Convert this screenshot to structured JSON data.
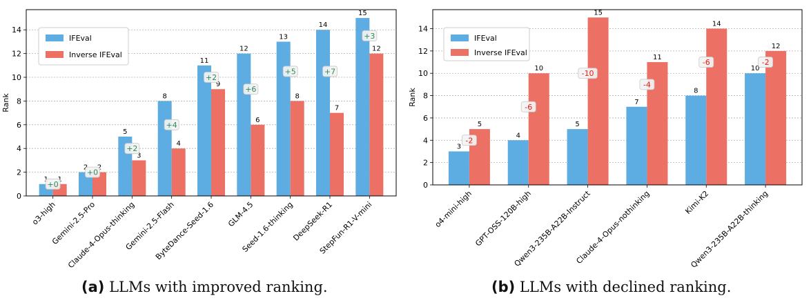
{
  "chart_data": [
    {
      "type": "bar",
      "title": "",
      "xlabel": "",
      "ylabel": "Rank",
      "ylim": [
        0,
        15.7
      ],
      "yticks": [
        0,
        2,
        4,
        6,
        8,
        10,
        12,
        14
      ],
      "grid": "y dotted",
      "legend": "top-left",
      "categories": [
        "o3-high",
        "Gemini-2.5-Pro",
        "Claude-4-Opus-thinking",
        "Gemini-2.5-Flash",
        "ByteDance-Seed-1.6",
        "GLM-4.5",
        "Seed-1.6-thinking",
        "DeepSeek-R1",
        "StepFun-R1-V-mini"
      ],
      "series": [
        {
          "name": "IFEval",
          "color": "#5DADE2",
          "values": [
            1,
            2,
            5,
            8,
            11,
            12,
            13,
            14,
            15
          ]
        },
        {
          "name": "Inverse IFEval",
          "color": "#EC7063",
          "values": [
            1,
            2,
            3,
            4,
            9,
            6,
            8,
            7,
            12
          ]
        }
      ],
      "annotations": [
        "+0",
        "+0",
        "+2",
        "+4",
        "+2",
        "+6",
        "+5",
        "+7",
        "+3"
      ],
      "annotation_color": "#2E8B57"
    },
    {
      "type": "bar",
      "title": "",
      "xlabel": "",
      "ylabel": "Rank",
      "ylim": [
        0,
        15.7
      ],
      "yticks": [
        0,
        2,
        4,
        6,
        8,
        10,
        12,
        14
      ],
      "grid": "y dotted",
      "legend": "top-left",
      "categories": [
        "o4-mini-high",
        "GPT-OSS-120B-high",
        "Qwen3-235B-A22B-Instruct",
        "Claude-4-Opus-nothinking",
        "Kimi-K2",
        "Qwen3-235B-A22B-thinking"
      ],
      "series": [
        {
          "name": "IFEval",
          "color": "#5DADE2",
          "values": [
            3,
            4,
            5,
            7,
            8,
            10
          ]
        },
        {
          "name": "Inverse IFEval",
          "color": "#EC7063",
          "values": [
            5,
            10,
            15,
            11,
            14,
            12
          ]
        }
      ],
      "annotations": [
        "-2",
        "-6",
        "-10",
        "-4",
        "-6",
        "-2"
      ],
      "annotation_color": "#E0201B"
    }
  ],
  "captions": {
    "a": {
      "tag": "(a)",
      "text": "LLMs with improved ranking."
    },
    "b": {
      "tag": "(b)",
      "text": "LLMs with declined ranking."
    }
  }
}
